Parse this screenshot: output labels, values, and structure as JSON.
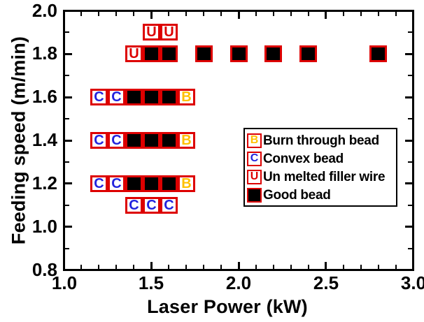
{
  "figure": {
    "background": "#ffffff",
    "axis_color": "#000000"
  },
  "colors": {
    "marker_border": "#dd0000",
    "good_bead_fill": "#000000",
    "burn_letter": "#ffc000",
    "convex_letter": "#2323dd",
    "unmelted_letter": "#dd0000"
  },
  "chart_data": {
    "type": "scatter",
    "title": "",
    "xlabel": "Laser Power (kW)",
    "ylabel": "Feeding speed (m/min)",
    "xlim": [
      1.0,
      3.0
    ],
    "ylim": [
      0.8,
      2.0
    ],
    "grid": false,
    "legend_position": "inside-right",
    "x_major_ticks": [
      1.0,
      1.5,
      2.0,
      2.5,
      3.0
    ],
    "x_major_tick_labels": [
      "1.0",
      "1.5",
      "2.0",
      "2.5",
      "3.0"
    ],
    "x_minor_tick_step": 0.1,
    "y_major_ticks": [
      0.8,
      1.0,
      1.2,
      1.4,
      1.6,
      1.8,
      2.0
    ],
    "y_major_tick_labels": [
      "0.8",
      "1.0",
      "1.2",
      "1.4",
      "1.6",
      "1.8",
      "2.0"
    ],
    "y_minor_tick_step": 0.1,
    "series": [
      {
        "name": "Burn through bead",
        "marker_letter": "B",
        "letter_color": "#ffc000",
        "box_border_color": "#dd0000",
        "box_fill": "#ffffff",
        "points": [
          [
            1.7,
            1.6
          ],
          [
            1.7,
            1.4
          ],
          [
            1.7,
            1.2
          ]
        ]
      },
      {
        "name": "Convex bead",
        "marker_letter": "C",
        "letter_color": "#2323dd",
        "box_border_color": "#dd0000",
        "box_fill": "#ffffff",
        "points": [
          [
            1.2,
            1.6
          ],
          [
            1.3,
            1.6
          ],
          [
            1.2,
            1.4
          ],
          [
            1.3,
            1.4
          ],
          [
            1.2,
            1.2
          ],
          [
            1.3,
            1.2
          ],
          [
            1.4,
            1.1
          ],
          [
            1.5,
            1.1
          ],
          [
            1.6,
            1.1
          ]
        ]
      },
      {
        "name": "Un melted filler wire",
        "marker_letter": "U",
        "letter_color": "#dd0000",
        "box_border_color": "#dd0000",
        "box_fill": "#ffffff",
        "points": [
          [
            1.5,
            1.9
          ],
          [
            1.6,
            1.9
          ],
          [
            1.4,
            1.8
          ]
        ]
      },
      {
        "name": "Good bead",
        "marker_letter": "",
        "letter_color": "#000000",
        "box_border_color": "#dd0000",
        "box_fill": "#000000",
        "points": [
          [
            1.5,
            1.8
          ],
          [
            1.6,
            1.8
          ],
          [
            1.8,
            1.8
          ],
          [
            2.0,
            1.8
          ],
          [
            2.2,
            1.8
          ],
          [
            2.4,
            1.8
          ],
          [
            2.8,
            1.8
          ],
          [
            1.4,
            1.6
          ],
          [
            1.5,
            1.6
          ],
          [
            1.6,
            1.6
          ],
          [
            1.4,
            1.4
          ],
          [
            1.5,
            1.4
          ],
          [
            1.6,
            1.4
          ],
          [
            1.4,
            1.2
          ],
          [
            1.5,
            1.2
          ],
          [
            1.6,
            1.2
          ]
        ]
      }
    ]
  }
}
